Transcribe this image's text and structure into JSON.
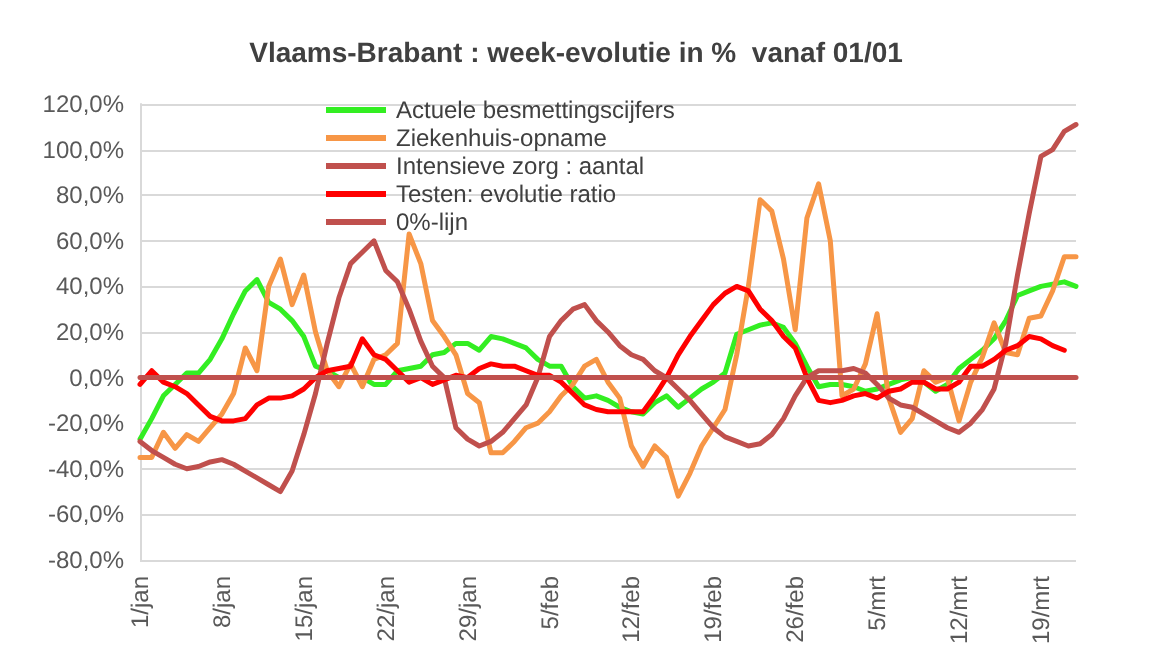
{
  "chart_data": {
    "type": "line",
    "title": "Vlaams-Brabant : week-evolutie in %  vanaf 01/01",
    "categories": [
      "1/jan",
      null,
      null,
      null,
      null,
      null,
      null,
      "8/jan",
      null,
      null,
      null,
      null,
      null,
      null,
      "15/jan",
      null,
      null,
      null,
      null,
      null,
      null,
      "22/jan",
      null,
      null,
      null,
      null,
      null,
      null,
      "29/jan",
      null,
      null,
      null,
      null,
      null,
      null,
      "5/feb",
      null,
      null,
      null,
      null,
      null,
      null,
      "12/feb",
      null,
      null,
      null,
      null,
      null,
      null,
      "19/feb",
      null,
      null,
      null,
      null,
      null,
      null,
      "26/feb",
      null,
      null,
      null,
      null,
      null,
      null,
      "5/mrt",
      null,
      null,
      null,
      null,
      null,
      null,
      "12/mrt",
      null,
      null,
      null,
      null,
      null,
      null,
      "19/mrt",
      null,
      null,
      null
    ],
    "series": [
      {
        "name": "Actuele besmettingscijfers",
        "color": "#33ee22",
        "values": [
          -27,
          -18,
          -8,
          -3,
          2,
          2,
          8,
          17,
          28,
          38,
          43,
          33,
          30,
          25,
          18,
          5,
          3,
          0,
          0,
          0,
          -3,
          -3,
          3,
          4,
          5,
          10,
          11,
          15,
          15,
          12,
          18,
          17,
          15,
          13,
          8,
          5,
          5,
          -4,
          -9,
          -8,
          -10,
          -13,
          -15,
          -16,
          -11,
          -8,
          -13,
          -9,
          -5,
          -2,
          2,
          19,
          21,
          23,
          24,
          22,
          15,
          5,
          -4,
          -3,
          -3,
          -4,
          -6,
          -5,
          -3,
          -1,
          0,
          -2,
          -6,
          -3,
          4,
          8,
          12,
          17,
          25,
          36,
          38,
          40,
          41,
          42,
          40
        ]
      },
      {
        "name": "Ziekenhuis-opname",
        "color": "#f79646",
        "values": [
          -35,
          -35,
          -24,
          -31,
          -25,
          -28,
          -22,
          -16,
          -7,
          13,
          3,
          40,
          52,
          32,
          45,
          20,
          3,
          -4,
          6,
          -4,
          8,
          10,
          15,
          63,
          50,
          25,
          18,
          10,
          -7,
          -11,
          -33,
          -33,
          -28,
          -22,
          -20,
          -15,
          -8,
          -3,
          5,
          8,
          -2,
          -9,
          -30,
          -39,
          -30,
          -35,
          -52,
          -42,
          -30,
          -22,
          -14,
          10,
          40,
          78,
          73,
          52,
          21,
          70,
          85,
          60,
          -8,
          -5,
          6,
          28,
          -9,
          -24,
          -18,
          3,
          -2,
          0,
          -19,
          -2,
          9,
          24,
          11,
          10,
          26,
          27,
          38,
          53,
          53
        ]
      },
      {
        "name": "Intensieve zorg : aantal",
        "color": "#c0504d",
        "values": [
          -28,
          -32,
          -35,
          -38,
          -40,
          -39,
          -37,
          -36,
          -38,
          -41,
          -44,
          -47,
          -50,
          -41,
          -25,
          -7,
          15,
          35,
          50,
          55,
          60,
          47,
          42,
          30,
          16,
          5,
          0,
          -22,
          -27,
          -30,
          -28,
          -24,
          -18,
          -12,
          0,
          18,
          25,
          30,
          32,
          25,
          20,
          14,
          10,
          8,
          3,
          0,
          -5,
          -10,
          -16,
          -22,
          -26,
          -28,
          -30,
          -29,
          -25,
          -18,
          -8,
          0,
          3,
          3,
          3,
          4,
          2,
          -3,
          -9,
          -12,
          -13,
          -16,
          -19,
          -22,
          -24,
          -20,
          -14,
          -5,
          15,
          45,
          72,
          97,
          100,
          108,
          111
        ]
      },
      {
        "name": "Testen: evolutie ratio",
        "color": "#ff0000",
        "values": [
          -3,
          3,
          -2,
          -4,
          -7,
          -12,
          -17,
          -19,
          -19,
          -18,
          -12,
          -9,
          -9,
          -8,
          -5,
          0,
          3,
          4,
          5,
          17,
          10,
          8,
          3,
          -2,
          0,
          -3,
          -1,
          1,
          0,
          4,
          6,
          5,
          5,
          3,
          1,
          1,
          -2,
          -7,
          -12,
          -14,
          -15,
          -15,
          -15,
          -15,
          -8,
          0,
          10,
          18,
          25,
          32,
          37,
          40,
          38,
          30,
          25,
          18,
          13,
          0,
          -10,
          -11,
          -10,
          -8,
          -7,
          -9,
          -6,
          -5,
          -2,
          -2,
          -5,
          -5,
          -2,
          5,
          5,
          8,
          12,
          14,
          18,
          17,
          14,
          12,
          null
        ]
      },
      {
        "name": "0%-lijn",
        "color": "#c0504d",
        "values": [
          0,
          0,
          0,
          0,
          0,
          0,
          0,
          0,
          0,
          0,
          0,
          0,
          0,
          0,
          0,
          0,
          0,
          0,
          0,
          0,
          0,
          0,
          0,
          0,
          0,
          0,
          0,
          0,
          0,
          0,
          0,
          0,
          0,
          0,
          0,
          0,
          0,
          0,
          0,
          0,
          0,
          0,
          0,
          0,
          0,
          0,
          0,
          0,
          0,
          0,
          0,
          0,
          0,
          0,
          0,
          0,
          0,
          0,
          0,
          0,
          0,
          0,
          0,
          0,
          0,
          0,
          0,
          0,
          0,
          0,
          0,
          0,
          0,
          0,
          0,
          0,
          0,
          0,
          0,
          0,
          0
        ]
      }
    ],
    "ylim": [
      -80,
      120
    ],
    "yticks": [
      {
        "value": -80,
        "label": "-80,0%"
      },
      {
        "value": -60,
        "label": "-60,0%"
      },
      {
        "value": -40,
        "label": "-40,0%"
      },
      {
        "value": -20,
        "label": "-20,0%"
      },
      {
        "value": 0,
        "label": "0,0%"
      },
      {
        "value": 20,
        "label": "20,0%"
      },
      {
        "value": 40,
        "label": "40,0%"
      },
      {
        "value": 60,
        "label": "60,0%"
      },
      {
        "value": 80,
        "label": "80,0%"
      },
      {
        "value": 100,
        "label": "100,0%"
      },
      {
        "value": 120,
        "label": "120,0%"
      }
    ],
    "grid": "y",
    "legend": "top",
    "marker": "none",
    "line_style": "solid"
  }
}
